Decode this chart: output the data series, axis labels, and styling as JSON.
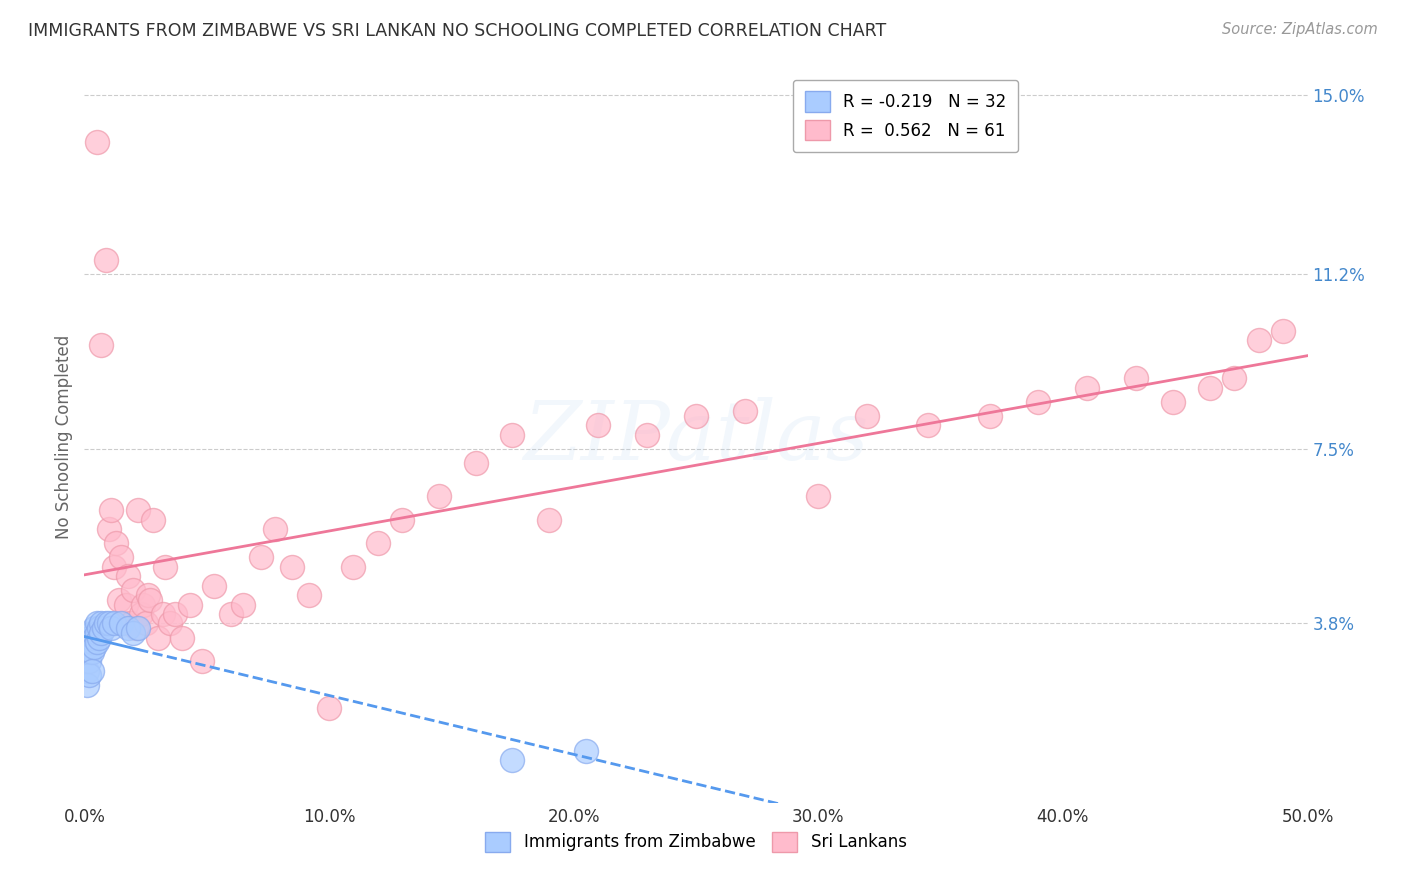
{
  "title": "IMMIGRANTS FROM ZIMBABWE VS SRI LANKAN NO SCHOOLING COMPLETED CORRELATION CHART",
  "source": "Source: ZipAtlas.com",
  "ylabel": "No Schooling Completed",
  "xlim": [
    0.0,
    0.5
  ],
  "ylim": [
    0.0,
    0.155
  ],
  "xticks": [
    0.0,
    0.1,
    0.2,
    0.3,
    0.4,
    0.5
  ],
  "xticklabels": [
    "0.0%",
    "10.0%",
    "20.0%",
    "30.0%",
    "40.0%",
    "50.0%"
  ],
  "yticks": [
    0.038,
    0.075,
    0.112,
    0.15
  ],
  "yticklabels": [
    "3.8%",
    "7.5%",
    "11.2%",
    "15.0%"
  ],
  "R_zimbabwe": -0.219,
  "N_zimbabwe": 32,
  "R_srilanka": 0.562,
  "N_srilanka": 61,
  "zimbabwe_x": [
    0.001,
    0.001,
    0.001,
    0.002,
    0.002,
    0.002,
    0.002,
    0.003,
    0.003,
    0.003,
    0.003,
    0.004,
    0.004,
    0.004,
    0.005,
    0.005,
    0.005,
    0.006,
    0.006,
    0.007,
    0.007,
    0.008,
    0.009,
    0.01,
    0.011,
    0.012,
    0.015,
    0.018,
    0.02,
    0.022,
    0.175,
    0.205
  ],
  "zimbabwe_y": [
    0.033,
    0.028,
    0.025,
    0.035,
    0.032,
    0.03,
    0.027,
    0.036,
    0.034,
    0.032,
    0.028,
    0.037,
    0.035,
    0.033,
    0.038,
    0.036,
    0.034,
    0.037,
    0.035,
    0.038,
    0.036,
    0.037,
    0.038,
    0.038,
    0.037,
    0.038,
    0.038,
    0.037,
    0.036,
    0.037,
    0.009,
    0.011
  ],
  "srilanka_x": [
    0.005,
    0.007,
    0.009,
    0.01,
    0.011,
    0.012,
    0.013,
    0.014,
    0.015,
    0.016,
    0.017,
    0.018,
    0.019,
    0.02,
    0.021,
    0.022,
    0.023,
    0.024,
    0.025,
    0.026,
    0.027,
    0.028,
    0.03,
    0.032,
    0.033,
    0.035,
    0.037,
    0.04,
    0.043,
    0.048,
    0.053,
    0.06,
    0.065,
    0.072,
    0.078,
    0.085,
    0.092,
    0.1,
    0.11,
    0.12,
    0.13,
    0.145,
    0.16,
    0.175,
    0.19,
    0.21,
    0.23,
    0.25,
    0.27,
    0.3,
    0.32,
    0.345,
    0.37,
    0.39,
    0.41,
    0.43,
    0.445,
    0.46,
    0.47,
    0.48,
    0.49
  ],
  "srilanka_y": [
    0.14,
    0.097,
    0.115,
    0.058,
    0.062,
    0.05,
    0.055,
    0.043,
    0.052,
    0.038,
    0.042,
    0.048,
    0.038,
    0.045,
    0.037,
    0.062,
    0.04,
    0.042,
    0.038,
    0.044,
    0.043,
    0.06,
    0.035,
    0.04,
    0.05,
    0.038,
    0.04,
    0.035,
    0.042,
    0.03,
    0.046,
    0.04,
    0.042,
    0.052,
    0.058,
    0.05,
    0.044,
    0.02,
    0.05,
    0.055,
    0.06,
    0.065,
    0.072,
    0.078,
    0.06,
    0.08,
    0.078,
    0.082,
    0.083,
    0.065,
    0.082,
    0.08,
    0.082,
    0.085,
    0.088,
    0.09,
    0.085,
    0.088,
    0.09,
    0.098,
    0.1
  ],
  "zimbabwe_line_color": "#5599ee",
  "srilanka_line_color": "#ee7799",
  "dot_color_zimbabwe": "#aaccff",
  "dot_color_srilanka": "#ffbbcc",
  "dot_edge_zimbabwe": "#88aaee",
  "dot_edge_srilanka": "#ee99aa",
  "background_color": "#ffffff",
  "grid_color": "#cccccc",
  "title_color": "#333333",
  "axis_label_color": "#666666",
  "ytick_color": "#4488cc",
  "xtick_color": "#333333",
  "watermark": "ZIPatlas"
}
